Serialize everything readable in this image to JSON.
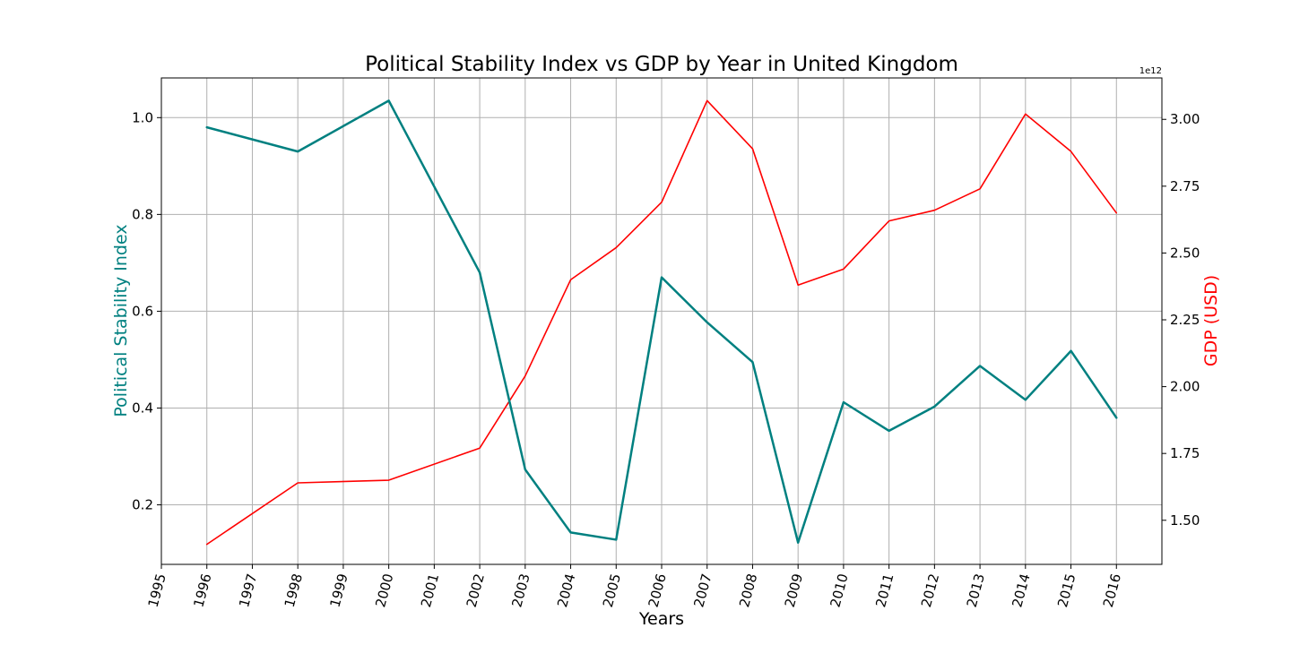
{
  "chart_data": {
    "type": "line",
    "title": "Political Stability Index vs GDP by Year in United Kingdom",
    "xlabel": "Years",
    "ylabel_left": "Political Stability Index",
    "ylabel_right": "GDP (USD)",
    "right_axis_multiplier": "1e12",
    "x_ticks": [
      "1995",
      "1996",
      "1997",
      "1998",
      "1999",
      "2000",
      "2001",
      "2002",
      "2003",
      "2004",
      "2005",
      "2006",
      "2007",
      "2008",
      "2009",
      "2010",
      "2011",
      "2012",
      "2013",
      "2014",
      "2015",
      "2016"
    ],
    "x_lim": [
      1995,
      2017
    ],
    "y_left_lim": [
      0.077,
      1.082
    ],
    "y_left_ticks": [
      "0.2",
      "0.4",
      "0.6",
      "0.8",
      "1.0"
    ],
    "y_right_lim": [
      1.335,
      3.155
    ],
    "y_right_ticks": [
      "1.50",
      "1.75",
      "2.00",
      "2.25",
      "2.50",
      "2.75",
      "3.00"
    ],
    "grid": true,
    "colors": {
      "stability": "#008080",
      "gdp": "#ff0000"
    },
    "series": [
      {
        "axis": "left",
        "x": [
          1996,
          1998,
          2000,
          2002,
          2003,
          2004,
          2005,
          2006,
          2007,
          2008,
          2009,
          2010,
          2011,
          2012,
          2013,
          2014,
          2015,
          2016
        ],
        "values": [
          0.98,
          0.93,
          1.035,
          0.68,
          0.273,
          0.143,
          0.128,
          0.67,
          0.577,
          0.495,
          0.122,
          0.412,
          0.353,
          0.403,
          0.487,
          0.417,
          0.518,
          0.38
        ]
      },
      {
        "axis": "right",
        "x": [
          1996,
          1998,
          2000,
          2002,
          2003,
          2004,
          2005,
          2006,
          2007,
          2008,
          2009,
          2010,
          2011,
          2012,
          2013,
          2014,
          2015,
          2016
        ],
        "values": [
          1.41,
          1.64,
          1.65,
          1.77,
          2.04,
          2.4,
          2.52,
          2.69,
          3.07,
          2.89,
          2.38,
          2.44,
          2.62,
          2.66,
          2.74,
          3.02,
          2.88,
          2.65
        ]
      }
    ]
  }
}
